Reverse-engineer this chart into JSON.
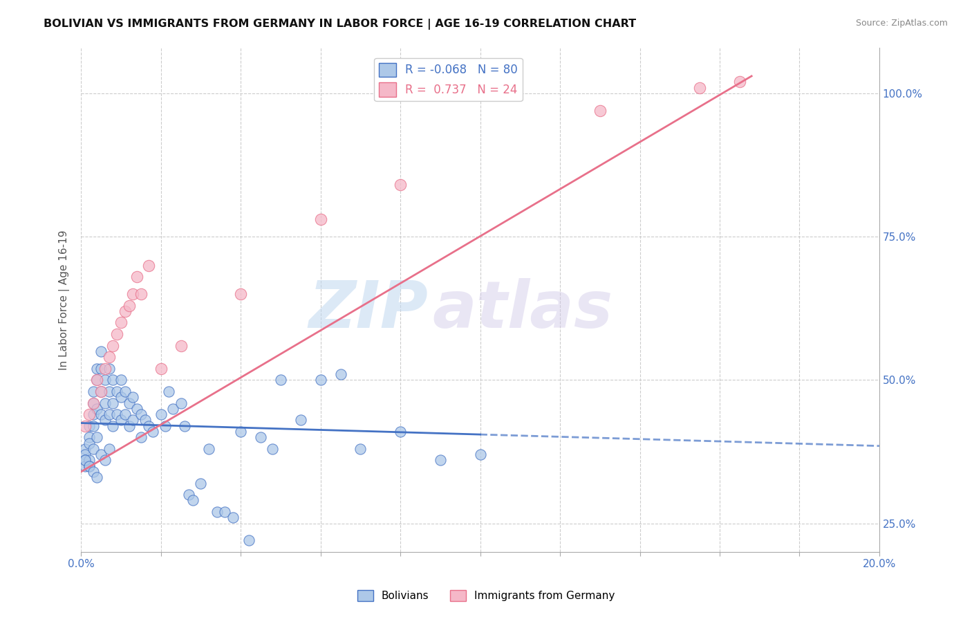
{
  "title": "BOLIVIAN VS IMMIGRANTS FROM GERMANY IN LABOR FORCE | AGE 16-19 CORRELATION CHART",
  "source": "Source: ZipAtlas.com",
  "ylabel": "In Labor Force | Age 16-19",
  "xmin": 0.0,
  "xmax": 0.2,
  "ymin": 0.2,
  "ymax": 1.08,
  "yticks": [
    0.25,
    0.5,
    0.75,
    1.0
  ],
  "ytick_labels": [
    "25.0%",
    "50.0%",
    "75.0%",
    "100.0%"
  ],
  "blue_R": -0.068,
  "blue_N": 80,
  "pink_R": 0.737,
  "pink_N": 24,
  "blue_color": "#adc8e8",
  "pink_color": "#f5b8c8",
  "blue_line_color": "#4472c4",
  "pink_line_color": "#e8708a",
  "watermark_zip": "ZIP",
  "watermark_atlas": "atlas",
  "legend_label_blue": "Bolivians",
  "legend_label_pink": "Immigrants from Germany",
  "blue_scatter_x": [
    0.001,
    0.001,
    0.001,
    0.001,
    0.002,
    0.002,
    0.002,
    0.002,
    0.002,
    0.003,
    0.003,
    0.003,
    0.003,
    0.003,
    0.004,
    0.004,
    0.004,
    0.004,
    0.005,
    0.005,
    0.005,
    0.005,
    0.006,
    0.006,
    0.006,
    0.007,
    0.007,
    0.007,
    0.008,
    0.008,
    0.008,
    0.009,
    0.009,
    0.01,
    0.01,
    0.01,
    0.011,
    0.011,
    0.012,
    0.012,
    0.013,
    0.013,
    0.014,
    0.015,
    0.015,
    0.016,
    0.017,
    0.018,
    0.02,
    0.021,
    0.022,
    0.023,
    0.025,
    0.026,
    0.027,
    0.028,
    0.03,
    0.032,
    0.034,
    0.036,
    0.038,
    0.04,
    0.042,
    0.045,
    0.048,
    0.05,
    0.055,
    0.06,
    0.065,
    0.07,
    0.08,
    0.09,
    0.1,
    0.001,
    0.002,
    0.003,
    0.004,
    0.005,
    0.006,
    0.007
  ],
  "blue_scatter_y": [
    0.38,
    0.37,
    0.36,
    0.35,
    0.42,
    0.4,
    0.39,
    0.36,
    0.35,
    0.48,
    0.46,
    0.44,
    0.42,
    0.38,
    0.52,
    0.5,
    0.45,
    0.4,
    0.55,
    0.52,
    0.48,
    0.44,
    0.5,
    0.46,
    0.43,
    0.52,
    0.48,
    0.44,
    0.5,
    0.46,
    0.42,
    0.48,
    0.44,
    0.5,
    0.47,
    0.43,
    0.48,
    0.44,
    0.46,
    0.42,
    0.47,
    0.43,
    0.45,
    0.44,
    0.4,
    0.43,
    0.42,
    0.41,
    0.44,
    0.42,
    0.48,
    0.45,
    0.46,
    0.42,
    0.3,
    0.29,
    0.32,
    0.38,
    0.27,
    0.27,
    0.26,
    0.41,
    0.22,
    0.4,
    0.38,
    0.5,
    0.43,
    0.5,
    0.51,
    0.38,
    0.41,
    0.36,
    0.37,
    0.36,
    0.35,
    0.34,
    0.33,
    0.37,
    0.36,
    0.38
  ],
  "pink_scatter_x": [
    0.001,
    0.002,
    0.003,
    0.004,
    0.005,
    0.006,
    0.007,
    0.008,
    0.009,
    0.01,
    0.011,
    0.012,
    0.013,
    0.014,
    0.015,
    0.017,
    0.02,
    0.025,
    0.04,
    0.06,
    0.08,
    0.13,
    0.155,
    0.165
  ],
  "pink_scatter_y": [
    0.42,
    0.44,
    0.46,
    0.5,
    0.48,
    0.52,
    0.54,
    0.56,
    0.58,
    0.6,
    0.62,
    0.63,
    0.65,
    0.68,
    0.65,
    0.7,
    0.52,
    0.56,
    0.65,
    0.78,
    0.84,
    0.97,
    1.01,
    1.02
  ],
  "blue_line_x0": 0.0,
  "blue_line_x1": 0.1,
  "blue_line_x2": 0.2,
  "blue_line_y0": 0.425,
  "blue_line_y1": 0.405,
  "blue_line_y2": 0.385,
  "pink_line_x0": 0.0,
  "pink_line_x1": 0.168,
  "pink_line_y0": 0.34,
  "pink_line_y1": 1.03
}
